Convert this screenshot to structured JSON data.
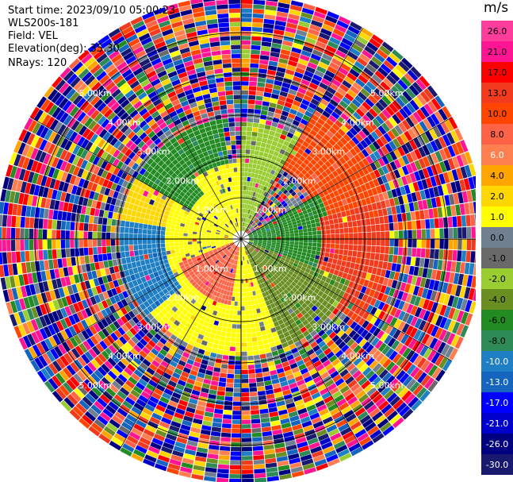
{
  "header": {
    "start_time": "Start time: 2023/09/10 05:00:23",
    "instrument": "WLS200s-181",
    "field": "Field: VEL",
    "elevation": "Elevation(deg): 35.30",
    "nrays": "NRays: 120"
  },
  "colorbar": {
    "unit": "m/s",
    "ticks": [
      "26.0",
      "21.0",
      "17.0",
      "13.0",
      "10.0",
      "8.0",
      "6.0",
      "4.0",
      "2.0",
      "1.0",
      "0.0",
      "-1.0",
      "-2.0",
      "-4.0",
      "-6.0",
      "-8.0",
      "-10.0",
      "-13.0",
      "-17.0",
      "-21.0",
      "-26.0",
      "-30.0"
    ],
    "colors": [
      "#ff3d9c",
      "#ff1493",
      "#ff0000",
      "#f23a1d",
      "#ff4500",
      "#ff6347",
      "#ff7f50",
      "#ffa500",
      "#ffd700",
      "#ffff00",
      "#708090",
      "#696969",
      "#9acd32",
      "#6b8e23",
      "#228b22",
      "#2e8b57",
      "#1e7fc4",
      "#1565c0",
      "#0000ff",
      "#0000cd",
      "#000080",
      "#191970"
    ]
  },
  "chart_data": {
    "type": "heatmap",
    "title": "",
    "field": "VEL",
    "units": "m/s",
    "n_rays": 120,
    "elevation_deg": 35.3,
    "range_rings_km": [
      1.0,
      2.0,
      3.0,
      4.0,
      5.0
    ],
    "range_ring_labels": [
      "1.00km",
      "2.00km",
      "3.00km",
      "4.00km",
      "5.00km"
    ],
    "max_range_km": 5.9,
    "color_scale_min": -30.0,
    "color_scale_max": 26.0,
    "sectors": [
      {
        "azimuth_from_deg": 0,
        "azimuth_to_deg": 30,
        "range_km": [
          0.2,
          2.8
        ],
        "velocity": -2.0
      },
      {
        "azimuth_from_deg": 30,
        "azimuth_to_deg": 75,
        "range_km": [
          2.0,
          3.6
        ],
        "velocity": 10.0
      },
      {
        "azimuth_from_deg": 60,
        "azimuth_to_deg": 110,
        "range_km": [
          0.2,
          2.2
        ],
        "velocity": -6.0
      },
      {
        "azimuth_from_deg": 75,
        "azimuth_to_deg": 125,
        "range_km": [
          2.0,
          3.6
        ],
        "velocity": 13.0
      },
      {
        "azimuth_from_deg": 110,
        "azimuth_to_deg": 160,
        "range_km": [
          0.2,
          2.8
        ],
        "velocity": -4.0
      },
      {
        "azimuth_from_deg": 160,
        "azimuth_to_deg": 200,
        "range_km": [
          0.2,
          2.8
        ],
        "velocity": 1.0
      },
      {
        "azimuth_from_deg": 190,
        "azimuth_to_deg": 250,
        "range_km": [
          0.2,
          1.6
        ],
        "velocity": 8.0
      },
      {
        "azimuth_from_deg": 200,
        "azimuth_to_deg": 250,
        "range_km": [
          1.6,
          2.8
        ],
        "velocity": 1.0
      },
      {
        "azimuth_from_deg": 230,
        "azimuth_to_deg": 280,
        "range_km": [
          1.8,
          2.9
        ],
        "velocity": -10.0
      },
      {
        "azimuth_from_deg": 250,
        "azimuth_to_deg": 320,
        "range_km": [
          0.2,
          1.8
        ],
        "velocity": 1.0
      },
      {
        "azimuth_from_deg": 280,
        "azimuth_to_deg": 320,
        "range_km": [
          1.8,
          2.9
        ],
        "velocity": 2.0
      },
      {
        "azimuth_from_deg": 300,
        "azimuth_to_deg": 350,
        "range_km": [
          1.4,
          3.0
        ],
        "velocity": -6.0
      },
      {
        "azimuth_from_deg": 320,
        "azimuth_to_deg": 360,
        "range_km": [
          0.2,
          1.8
        ],
        "velocity": 1.0
      }
    ],
    "outer_region": "noise (random velocities across full scale)",
    "grid": true
  }
}
